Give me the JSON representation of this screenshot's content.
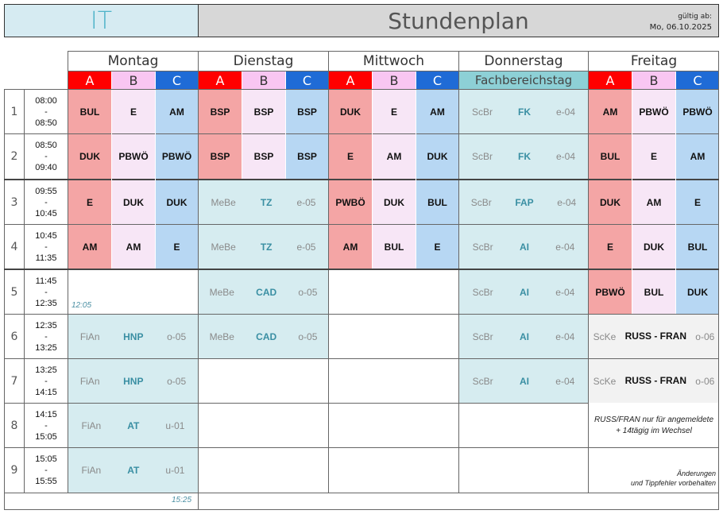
{
  "header": {
    "class_name": "IT",
    "title": "Stundenplan",
    "valid_label": "gültig ab:",
    "valid_date": "Mo, 06.10.2025"
  },
  "days": [
    "Montag",
    "Dienstag",
    "Mittwoch",
    "Donnerstag",
    "Freitag"
  ],
  "groups": [
    "A",
    "B",
    "C"
  ],
  "thursday_header": "Fachbereichstag",
  "lessons": [
    {
      "num": "1",
      "start": "08:00",
      "sep": "-",
      "end": "08:50"
    },
    {
      "num": "2",
      "start": "08:50",
      "sep": "-",
      "end": "09:40"
    },
    {
      "num": "3",
      "start": "09:55",
      "sep": "-",
      "end": "10:45"
    },
    {
      "num": "4",
      "start": "10:45",
      "sep": "-",
      "end": "11:35"
    },
    {
      "num": "5",
      "start": "11:45",
      "sep": "-",
      "end": "12:35"
    },
    {
      "num": "6",
      "start": "12:35",
      "sep": "-",
      "end": "13:25"
    },
    {
      "num": "7",
      "start": "13:25",
      "sep": "-",
      "end": "14:15"
    },
    {
      "num": "8",
      "start": "14:15",
      "sep": "-",
      "end": "15:05"
    },
    {
      "num": "9",
      "start": "15:05",
      "sep": "-",
      "end": "15:55"
    }
  ],
  "montag": {
    "r1": [
      "BUL",
      "E",
      "AM"
    ],
    "r2": [
      "DUK",
      "PBWÖ",
      "PBWÖ"
    ],
    "r3": [
      "E",
      "DUK",
      "DUK"
    ],
    "r4": [
      "AM",
      "AM",
      "E"
    ],
    "end_early": "12:05",
    "r6": {
      "teacher": "FiAn",
      "subject": "HNP",
      "room": "o-05"
    },
    "r7": {
      "teacher": "FiAn",
      "subject": "HNP",
      "room": "o-05"
    },
    "r8": {
      "teacher": "FiAn",
      "subject": "AT",
      "room": "u-01"
    },
    "r9": {
      "teacher": "FiAn",
      "subject": "AT",
      "room": "u-01"
    },
    "end_late": "15:25"
  },
  "dienstag": {
    "r1": [
      "BSP",
      "BSP",
      "BSP"
    ],
    "r2": [
      "BSP",
      "BSP",
      "BSP"
    ],
    "r3": {
      "teacher": "MeBe",
      "subject": "TZ",
      "room": "e-05"
    },
    "r4": {
      "teacher": "MeBe",
      "subject": "TZ",
      "room": "e-05"
    },
    "r5": {
      "teacher": "MeBe",
      "subject": "CAD",
      "room": "o-05"
    },
    "r6": {
      "teacher": "MeBe",
      "subject": "CAD",
      "room": "o-05"
    }
  },
  "mittwoch": {
    "r1": [
      "DUK",
      "E",
      "AM"
    ],
    "r2": [
      "E",
      "AM",
      "DUK"
    ],
    "r3": [
      "PWBÖ",
      "DUK",
      "BUL"
    ],
    "r4": [
      "AM",
      "BUL",
      "E"
    ]
  },
  "donnerstag": [
    {
      "teacher": "ScBr",
      "subject": "FK",
      "room": "e-04"
    },
    {
      "teacher": "ScBr",
      "subject": "FK",
      "room": "e-04"
    },
    {
      "teacher": "ScBr",
      "subject": "FAP",
      "room": "e-04"
    },
    {
      "teacher": "ScBr",
      "subject": "AI",
      "room": "e-04"
    },
    {
      "teacher": "ScBr",
      "subject": "AI",
      "room": "e-04"
    },
    {
      "teacher": "ScBr",
      "subject": "AI",
      "room": "e-04"
    },
    {
      "teacher": "ScBr",
      "subject": "AI",
      "room": "e-04"
    }
  ],
  "freitag": {
    "r1": [
      "AM",
      "PBWÖ",
      "PBWÖ"
    ],
    "r2": [
      "BUL",
      "E",
      "AM"
    ],
    "r3": [
      "DUK",
      "AM",
      "E"
    ],
    "r4": [
      "E",
      "DUK",
      "BUL"
    ],
    "r5": [
      "PBWÖ",
      "BUL",
      "DUK"
    ],
    "r6": {
      "teacher": "ScKe",
      "subject1": "RUSS",
      "sep": "-",
      "subject2": "FRAN",
      "room": "o-06"
    },
    "r7": {
      "teacher": "ScKe",
      "subject1": "RUSS",
      "sep": "-",
      "subject2": "FRAN",
      "room": "o-06"
    },
    "note": "RUSS/FRAN nur für angemeldete + 14tägig im Wechsel",
    "disclaimer1": "Änderungen",
    "disclaimer2": "und Tippfehler vorbehalten"
  }
}
